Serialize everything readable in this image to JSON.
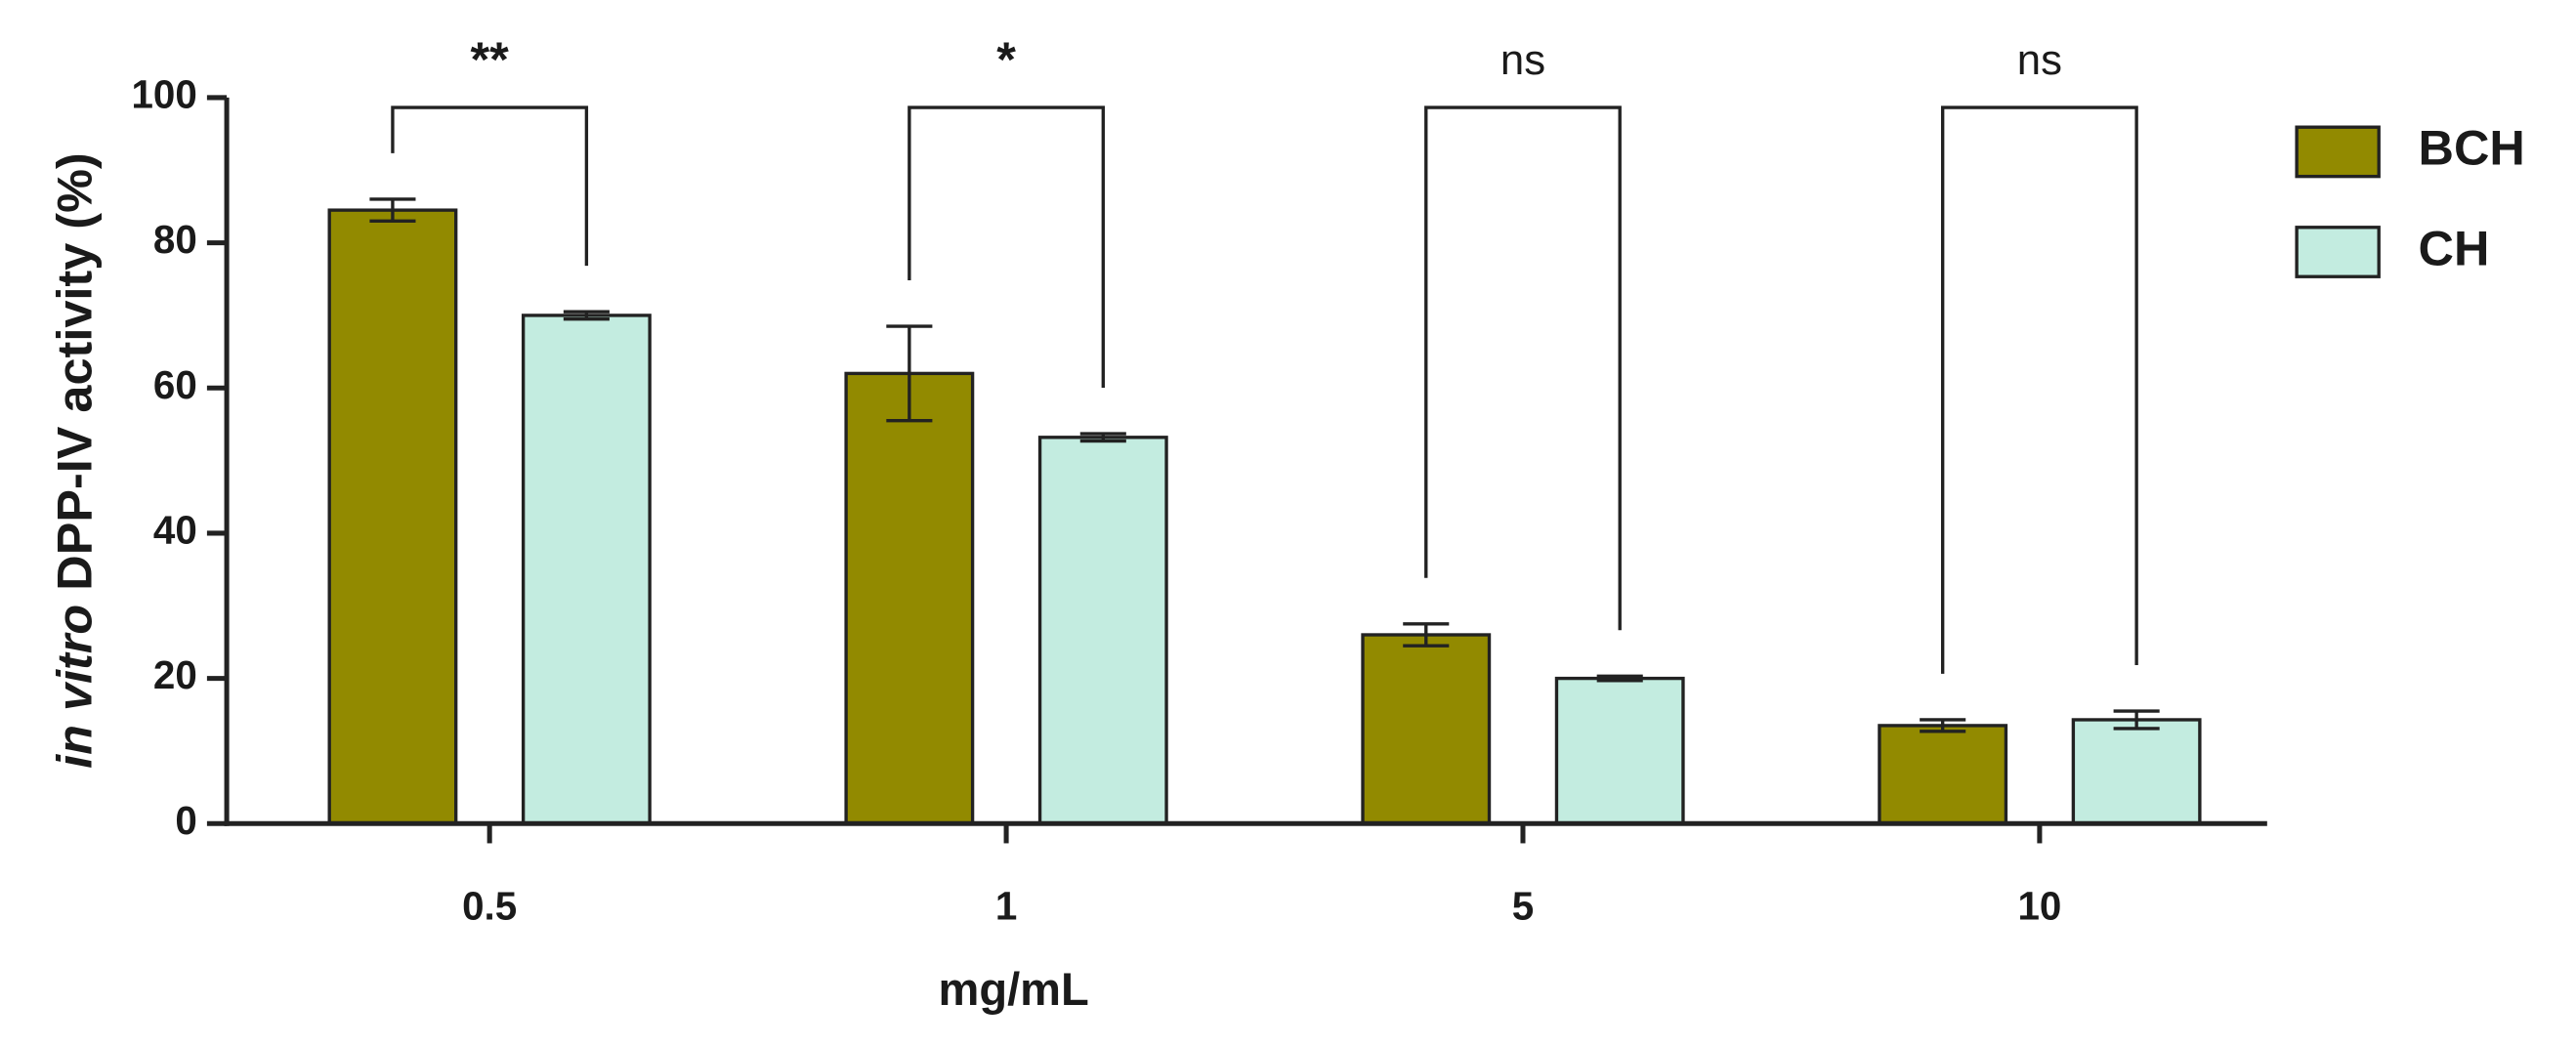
{
  "chart_data": {
    "type": "bar",
    "ylabel": {
      "italic": "in vitro",
      "rest": "DPP-IV activity  (%)"
    },
    "xlabel": "mg/mL",
    "categories": [
      "0.5",
      "1",
      "5",
      "10"
    ],
    "series": [
      {
        "name": "BCH",
        "color": "#928a00",
        "values": [
          84.5,
          62,
          26,
          13.5
        ],
        "errors": [
          1.5,
          6.5,
          1.5,
          0.8
        ]
      },
      {
        "name": "CH",
        "color": "#c3ece0",
        "values": [
          70,
          53.2,
          20,
          14.3
        ],
        "errors": [
          0.5,
          0.5,
          0.3,
          1.2
        ]
      }
    ],
    "annotations": [
      "**",
      "*",
      "ns",
      "ns"
    ],
    "ylim": [
      0,
      100
    ],
    "yticks": [
      0,
      20,
      40,
      60,
      80,
      100
    ],
    "legend": "right"
  }
}
